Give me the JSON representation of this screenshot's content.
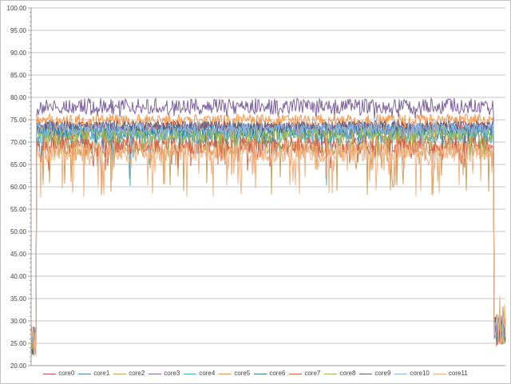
{
  "window": {
    "background": "#ffffff",
    "border_color": "#c3c3c3"
  },
  "chart_data": {
    "type": "line",
    "title": "",
    "xlabel": "",
    "ylabel": "",
    "x_axis": {
      "tick_labels_visible": false,
      "total_samples": 595
    },
    "y_axis": {
      "min": 20,
      "max": 100,
      "major_step": 5,
      "minor_step": 1,
      "tick_labels": [
        "100.00",
        "95.00",
        "90.00",
        "85.00",
        "80.00",
        "75.00",
        "70.00",
        "65.00",
        "60.00",
        "55.00",
        "50.00",
        "45.00",
        "40.00",
        "35.00",
        "30.00",
        "25.00",
        "20.00"
      ]
    },
    "grid": {
      "horizontal": true,
      "vertical": false,
      "grid_color": "#c6c6c6",
      "axis_color": "#9c9c9c",
      "label_color": "#3f3f3f"
    },
    "legend": {
      "position": "bottom"
    },
    "phases": {
      "idle_start_samples": 7,
      "idle_end_samples": 15,
      "idle_center": 25.5,
      "idle_spread": 3.5,
      "idle_end_center": 28.0,
      "idle_end_spread": 3.5,
      "description": "All cores idle ~22-30 at start, sustained load ~57-80 for the middle span, return to idle ~24-33 at end"
    },
    "series": [
      {
        "name": "core0",
        "color": "#C0504D",
        "load_mean": 73.3,
        "jitter": 1.2,
        "dip_min": 65.0,
        "dip_chance": 0.04,
        "spike_chance": 0,
        "spike_max": 0
      },
      {
        "name": "core1",
        "color": "#4F81BD",
        "load_mean": 72.3,
        "jitter": 1.7,
        "dip_min": 67.5,
        "dip_chance": 0.03,
        "spike_chance": 0,
        "spike_max": 0
      },
      {
        "name": "core2",
        "color": "#C9A35D",
        "load_mean": 68.8,
        "jitter": 2.2,
        "dip_min": 58.0,
        "dip_chance": 0.09,
        "spike_chance": 0,
        "spike_max": 0
      },
      {
        "name": "core3",
        "color": "#8064A2",
        "load_mean": 77.4,
        "jitter": 1.1,
        "dip_min": 75.0,
        "dip_chance": 0.05,
        "spike_chance": 0.3,
        "spike_max": 79.8
      },
      {
        "name": "core4",
        "color": "#4BACC6",
        "load_mean": 71.4,
        "jitter": 1.8,
        "dip_min": 59.5,
        "dip_chance": 0.02,
        "spike_chance": 0,
        "spike_max": 0
      },
      {
        "name": "core5",
        "color": "#F79646",
        "load_mean": 74.9,
        "jitter": 1.4,
        "dip_min": 62.0,
        "dip_chance": 0.05,
        "spike_chance": 0,
        "spike_max": 0
      },
      {
        "name": "core6",
        "color": "#31859C",
        "load_mean": 72.8,
        "jitter": 1.5,
        "dip_min": 68.5,
        "dip_chance": 0.03,
        "spike_chance": 0,
        "spike_max": 0
      },
      {
        "name": "core7",
        "color": "#D16349",
        "load_mean": 69.4,
        "jitter": 2.1,
        "dip_min": 63.5,
        "dip_chance": 0.07,
        "spike_chance": 0,
        "spike_max": 0
      },
      {
        "name": "core8",
        "color": "#9BBB59",
        "load_mean": 71.8,
        "jitter": 1.8,
        "dip_min": 66.0,
        "dip_chance": 0.03,
        "spike_chance": 0,
        "spike_max": 0
      },
      {
        "name": "core9",
        "color": "#6A5A7E",
        "load_mean": 73.6,
        "jitter": 1.2,
        "dip_min": 70.0,
        "dip_chance": 0.01,
        "spike_chance": 0,
        "spike_max": 0
      },
      {
        "name": "core10",
        "color": "#8DB4E2",
        "load_mean": 73.0,
        "jitter": 1.4,
        "dip_min": 69.0,
        "dip_chance": 0.02,
        "spike_chance": 0,
        "spike_max": 0
      },
      {
        "name": "core11",
        "color": "#F4B183",
        "load_mean": 67.8,
        "jitter": 2.3,
        "dip_min": 57.5,
        "dip_chance": 0.11,
        "spike_chance": 0,
        "spike_max": 0
      }
    ]
  }
}
